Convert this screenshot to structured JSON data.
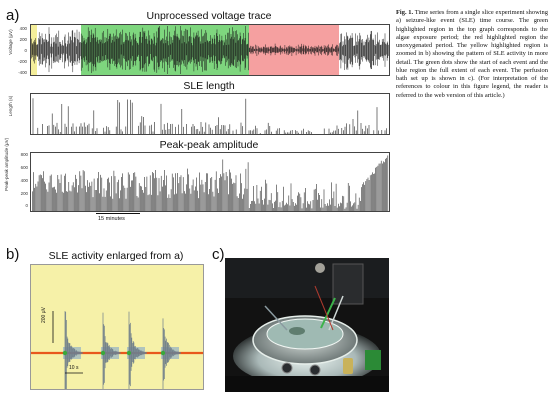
{
  "panel_labels": {
    "a": "a)",
    "b": "b)",
    "c": "c)"
  },
  "figure_a": {
    "trace": {
      "title": "Unprocessed voltage trace",
      "ylabel": "Voltage (μV)",
      "yticks": [
        "400",
        "200",
        "0",
        "-200",
        "-400"
      ],
      "colors": {
        "trace": "#1a1a1a",
        "green": "#7ed67e",
        "red": "#f5a0a0",
        "yellow": "#f4ee9a"
      }
    },
    "length": {
      "title": "SLE length",
      "ylabel": "Length (s)"
    },
    "amplitude": {
      "title": "Peak-peak amplitude",
      "ylabel": "Peak-peak amplitude (μV)",
      "yticks": [
        "800",
        "600",
        "400",
        "200",
        "0"
      ]
    },
    "scalebar_label": "15 minutes"
  },
  "figure_b": {
    "title": "SLE activity enlarged from a)",
    "scale_v": "200 μV",
    "scale_t": "10 s",
    "colors": {
      "background": "#f6f1a8",
      "baseline": "#e8581c",
      "spike": "#6f7e8a",
      "green_dot": "#3aa83a",
      "blue": "#5b8fd6"
    }
  },
  "photo_c": {
    "icon": "perfusion-bath-photo"
  },
  "caption": {
    "label": "Fig. 1.",
    "text": "Time series from a single slice experiment showing a) seizure-like event (SLE) time course. The green highlighted region in the top graph corresponds to the algae exposure period; the red highlighted region the unoxygenated period. The yellow highlighted region is zoomed in b) showing the pattern of SLE activity in more detail. The green dots show the start of each event and the blue region the full extent of each event. The perfusion bath set up is shown in c). (For interpretation of the references to colour in this figure legend, the reader is referred to the web version of this article.)"
  }
}
